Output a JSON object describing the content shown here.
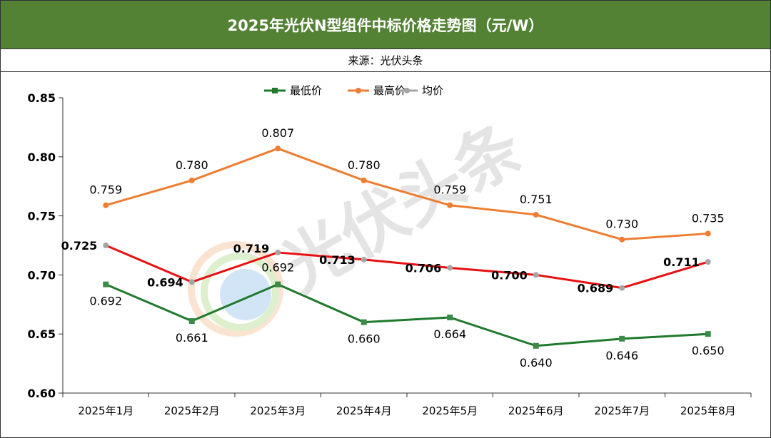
{
  "header": {
    "title": "2025年光伏N型组件中标价格走势图（元/W）",
    "source": "来源：光伏头条"
  },
  "watermark": {
    "text": "光伏头条"
  },
  "colors": {
    "title_bg": "#548235",
    "min_series": "#1F7A2E",
    "max_series": "#ED7D31",
    "avg_line": "#E81010",
    "avg_marker": "#A5A5A5"
  },
  "chart_data": {
    "type": "line",
    "title": "2025年光伏N型组件中标价格走势图（元/W）",
    "xlabel": "",
    "ylabel": "",
    "categories": [
      "2025年1月",
      "2025年2月",
      "2025年3月",
      "2025年4月",
      "2025年5月",
      "2025年6月",
      "2025年7月",
      "2025年8月"
    ],
    "ylim": [
      0.6,
      0.85
    ],
    "yticks": [
      "0.60",
      "0.65",
      "0.70",
      "0.75",
      "0.80",
      "0.85"
    ],
    "grid": false,
    "legend_position": "top-center",
    "series": [
      {
        "name": "最低价",
        "marker": "square",
        "values": [
          0.692,
          0.661,
          0.692,
          0.66,
          0.664,
          0.64,
          0.646,
          0.65
        ],
        "labels": [
          "0.692",
          "0.661",
          "0.692",
          "0.660",
          "0.664",
          "0.640",
          "0.646",
          "0.650"
        ]
      },
      {
        "name": "最高价",
        "marker": "circle",
        "values": [
          0.759,
          0.78,
          0.807,
          0.78,
          0.759,
          0.751,
          0.73,
          0.735
        ],
        "labels": [
          "0.759",
          "0.780",
          "0.807",
          "0.780",
          "0.759",
          "0.751",
          "0.730",
          "0.735"
        ]
      },
      {
        "name": "均价",
        "marker": "circle",
        "values": [
          0.725,
          0.694,
          0.719,
          0.713,
          0.706,
          0.7,
          0.689,
          0.711
        ],
        "labels": [
          "0.725",
          "0.694",
          "0.719",
          "0.713",
          "0.706",
          "0.700",
          "0.689",
          "0.711"
        ]
      }
    ]
  }
}
